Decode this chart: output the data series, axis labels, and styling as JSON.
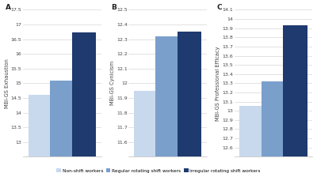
{
  "panels": [
    {
      "label": "A",
      "ylabel": "MBI-GS Exhaustion",
      "ylim": [
        12.5,
        17.5
      ],
      "yticks": [
        13.0,
        13.5,
        14.0,
        14.5,
        15.0,
        15.5,
        16.0,
        16.5,
        17.0,
        17.5
      ],
      "ytick_labels": [
        "13",
        "13.5",
        "14",
        "14.5",
        "15",
        "15.5",
        "16",
        "16.5",
        "17",
        "17.5"
      ],
      "values": [
        14.6,
        15.1,
        16.72
      ]
    },
    {
      "label": "B",
      "ylabel": "MBI-GS Cynicism",
      "ylim": [
        11.5,
        12.5
      ],
      "yticks": [
        11.6,
        11.7,
        11.8,
        11.9,
        12.0,
        12.1,
        12.2,
        12.3,
        12.4,
        12.5
      ],
      "ytick_labels": [
        "11.6",
        "11.7",
        "11.8",
        "11.9",
        "12",
        "12.1",
        "12.2",
        "12.3",
        "12.4",
        "12.5"
      ],
      "values": [
        11.95,
        12.32,
        12.35
      ]
    },
    {
      "label": "C",
      "ylabel": "MBI-GS Professional Efficacy",
      "ylim": [
        12.5,
        14.1
      ],
      "yticks": [
        12.6,
        12.7,
        12.8,
        12.9,
        13.0,
        13.1,
        13.2,
        13.3,
        13.4,
        13.5,
        13.6,
        13.7,
        13.8,
        13.9,
        14.0,
        14.1
      ],
      "ytick_labels": [
        "12.6",
        "12.7",
        "12.8",
        "12.9",
        "13",
        "13.1",
        "13.2",
        "13.3",
        "13.4",
        "13.5",
        "13.6",
        "13.7",
        "13.8",
        "13.9",
        "14",
        "14.1"
      ],
      "values": [
        13.05,
        13.32,
        13.93
      ]
    }
  ],
  "colors": [
    "#c8d9ee",
    "#7a9fcb",
    "#1e3a6e"
  ],
  "legend_labels": [
    "Non-shift workers",
    "Regular rotating shift workers",
    "Irregular rotating shift workers"
  ],
  "background_color": "#ffffff",
  "bar_width": 0.55,
  "fontsize_ylabel": 4.8,
  "fontsize_tick": 4.5,
  "fontsize_panel": 6.5,
  "fontsize_legend": 4.2
}
